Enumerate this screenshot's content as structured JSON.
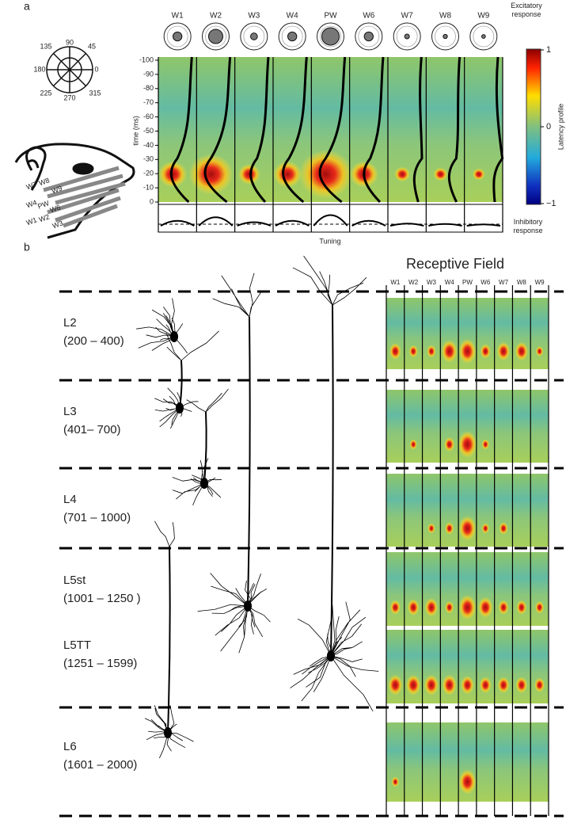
{
  "panel_a": {
    "label": "a",
    "polar_labels": [
      90,
      45,
      0,
      315,
      270,
      225,
      180,
      135
    ],
    "rat_whiskers": [
      "W7",
      "W8",
      "W9",
      "W4",
      "PW",
      "W6",
      "W1",
      "W2",
      "W3"
    ],
    "whiskers": [
      "W1",
      "W2",
      "W3",
      "W4",
      "PW",
      "W6",
      "W7",
      "W8",
      "W9"
    ],
    "y_axis": {
      "label": "time (ms)",
      "ticks": [
        -100,
        -90,
        -80,
        -70,
        -60,
        -50,
        -40,
        -30,
        -20,
        -10,
        0
      ]
    },
    "x_label": "Tuning",
    "colorbar": {
      "top_label": "Excitatory response",
      "middle_label": "Latency profile",
      "bottom_label": "Inhibitory response",
      "ticks": [
        1,
        0,
        {
          "value": -1,
          "label": "−1"
        }
      ]
    }
  },
  "panel_b": {
    "label": "b",
    "title": "Receptive Field",
    "whiskers": [
      "W1",
      "W2",
      "W3",
      "W4",
      "PW",
      "W6",
      "W7",
      "W8",
      "W9"
    ],
    "layers": [
      {
        "name": "L2",
        "depth": "(200 – 400)"
      },
      {
        "name": "L3",
        "depth": "(401– 700)"
      },
      {
        "name": "L4",
        "depth": "(701 – 1000)"
      },
      {
        "name": "L5st",
        "depth": "(1001 – 1250 )"
      },
      {
        "name": "L5TT",
        "depth": "(1251 – 1599)"
      },
      {
        "name": "L6",
        "depth": "(1601 – 2000)"
      }
    ]
  }
}
